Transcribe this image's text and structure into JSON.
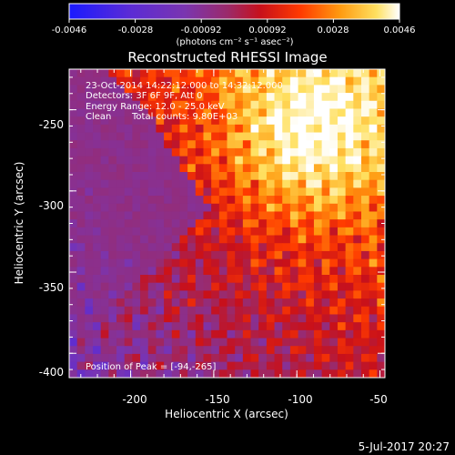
{
  "colorbar": {
    "tick_labels": [
      "-0.0046",
      "-0.0028",
      "-0.00092",
      "0.00092",
      "0.0028",
      "0.0046"
    ],
    "units_label": "(photons cm⁻² s⁻¹ asec⁻²)",
    "range": [
      -0.0046,
      0.0046
    ],
    "colors": [
      "#1a1aff",
      "#5a2bd6",
      "#7a35b0",
      "#9b2a6a",
      "#c8101a",
      "#ff3a00",
      "#ff9a10",
      "#ffe060",
      "#ffffff"
    ]
  },
  "image": {
    "title": "Reconstructed RHESSI Image",
    "overlay": {
      "time_range": "23-Oct-2014 14:22:12.000 to 14:32:12.000",
      "detectors": "Detectors: 3F 6F 9F, Att 0",
      "energy_range": "Energy Range: 12.0 - 25.0 keV",
      "method": "Clean",
      "total_counts": "Total counts: 9.80E+03",
      "peak": "Position of Peak = [-94,-265]"
    },
    "peak_position": [
      -94,
      -265
    ],
    "x_axis": {
      "label": "Heliocentric X (arcsec)",
      "range": [
        -237,
        -47
      ],
      "ticks": [
        -200,
        -150,
        -100,
        -50
      ],
      "tick_labels": [
        "-200",
        "-150",
        "-100",
        "-50"
      ]
    },
    "y_axis": {
      "label": "Heliocentric Y (arcsec)",
      "range": [
        -415,
        -225
      ],
      "ticks": [
        -250,
        -300,
        -350,
        -400
      ],
      "tick_labels": [
        "-250",
        "-300",
        "-350",
        "-400"
      ]
    }
  },
  "footer": {
    "date": "5-Jul-2017 20:27"
  }
}
